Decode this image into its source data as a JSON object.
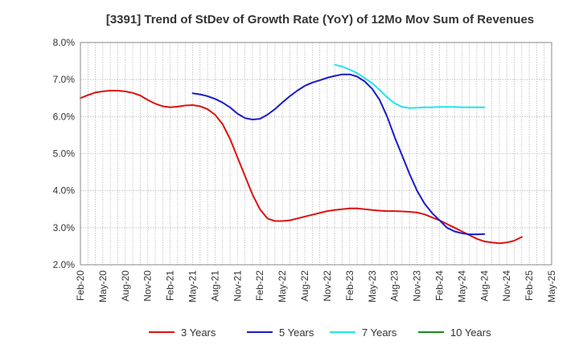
{
  "chart_data": {
    "type": "line",
    "title": "[3391]  Trend of StDev of Growth Rate (YoY) of 12Mo Mov Sum of Revenues",
    "xlabel": "",
    "ylabel": "",
    "ylim": [
      2.0,
      8.0
    ],
    "y_ticks": [
      "2.0%",
      "3.0%",
      "4.0%",
      "5.0%",
      "6.0%",
      "7.0%",
      "8.0%"
    ],
    "x_tick_labels": [
      "Feb-20",
      "May-20",
      "Aug-20",
      "Nov-20",
      "Feb-21",
      "May-21",
      "Aug-21",
      "Nov-21",
      "Feb-22",
      "May-22",
      "Aug-22",
      "Nov-22",
      "Feb-23",
      "May-23",
      "Aug-23",
      "Nov-23",
      "Feb-24",
      "May-24",
      "Aug-24",
      "Nov-24",
      "Feb-25",
      "May-25"
    ],
    "grid": true,
    "legend_position": "bottom",
    "series": [
      {
        "name": "3 Years",
        "color": "#dd1111",
        "points": [
          [
            0,
            6.5
          ],
          [
            1,
            6.58
          ],
          [
            2,
            6.65
          ],
          [
            3,
            6.68
          ],
          [
            4,
            6.7
          ],
          [
            5,
            6.7
          ],
          [
            6,
            6.68
          ],
          [
            7,
            6.64
          ],
          [
            8,
            6.57
          ],
          [
            9,
            6.45
          ],
          [
            10,
            6.35
          ],
          [
            11,
            6.28
          ],
          [
            12,
            6.25
          ],
          [
            13,
            6.27
          ],
          [
            14,
            6.3
          ],
          [
            15,
            6.31
          ],
          [
            16,
            6.28
          ],
          [
            17,
            6.2
          ],
          [
            18,
            6.05
          ],
          [
            19,
            5.8
          ],
          [
            20,
            5.4
          ],
          [
            21,
            4.9
          ],
          [
            22,
            4.4
          ],
          [
            23,
            3.9
          ],
          [
            24,
            3.5
          ],
          [
            25,
            3.25
          ],
          [
            26,
            3.18
          ],
          [
            27,
            3.18
          ],
          [
            28,
            3.2
          ],
          [
            29,
            3.25
          ],
          [
            30,
            3.3
          ],
          [
            31,
            3.35
          ],
          [
            32,
            3.4
          ],
          [
            33,
            3.45
          ],
          [
            34,
            3.48
          ],
          [
            35,
            3.5
          ],
          [
            36,
            3.52
          ],
          [
            37,
            3.52
          ],
          [
            38,
            3.5
          ],
          [
            39,
            3.48
          ],
          [
            40,
            3.46
          ],
          [
            41,
            3.45
          ],
          [
            42,
            3.45
          ],
          [
            43,
            3.44
          ],
          [
            44,
            3.43
          ],
          [
            45,
            3.41
          ],
          [
            46,
            3.36
          ],
          [
            47,
            3.28
          ],
          [
            48,
            3.2
          ],
          [
            49,
            3.1
          ],
          [
            50,
            3.0
          ],
          [
            51,
            2.9
          ],
          [
            52,
            2.8
          ],
          [
            53,
            2.7
          ],
          [
            54,
            2.63
          ],
          [
            55,
            2.6
          ],
          [
            56,
            2.58
          ],
          [
            57,
            2.6
          ],
          [
            58,
            2.65
          ],
          [
            59,
            2.75
          ]
        ]
      },
      {
        "name": "5 Years",
        "color": "#1a1acc",
        "points": [
          [
            15,
            6.63
          ],
          [
            16,
            6.6
          ],
          [
            17,
            6.55
          ],
          [
            18,
            6.48
          ],
          [
            19,
            6.38
          ],
          [
            20,
            6.25
          ],
          [
            21,
            6.08
          ],
          [
            22,
            5.96
          ],
          [
            23,
            5.92
          ],
          [
            24,
            5.94
          ],
          [
            25,
            6.05
          ],
          [
            26,
            6.2
          ],
          [
            27,
            6.38
          ],
          [
            28,
            6.55
          ],
          [
            29,
            6.7
          ],
          [
            30,
            6.83
          ],
          [
            31,
            6.92
          ],
          [
            32,
            6.98
          ],
          [
            33,
            7.05
          ],
          [
            34,
            7.1
          ],
          [
            35,
            7.14
          ],
          [
            36,
            7.14
          ],
          [
            37,
            7.08
          ],
          [
            38,
            6.95
          ],
          [
            39,
            6.75
          ],
          [
            40,
            6.45
          ],
          [
            41,
            6.0
          ],
          [
            42,
            5.45
          ],
          [
            43,
            4.95
          ],
          [
            44,
            4.45
          ],
          [
            45,
            4.0
          ],
          [
            46,
            3.65
          ],
          [
            47,
            3.4
          ],
          [
            48,
            3.2
          ],
          [
            49,
            3.0
          ],
          [
            50,
            2.9
          ],
          [
            51,
            2.85
          ],
          [
            52,
            2.82
          ],
          [
            53,
            2.82
          ],
          [
            54,
            2.83
          ]
        ]
      },
      {
        "name": "7 Years",
        "color": "#22e5ee",
        "points": [
          [
            34,
            7.4
          ],
          [
            35,
            7.35
          ],
          [
            36,
            7.27
          ],
          [
            37,
            7.17
          ],
          [
            38,
            7.04
          ],
          [
            39,
            6.9
          ],
          [
            40,
            6.72
          ],
          [
            41,
            6.52
          ],
          [
            42,
            6.36
          ],
          [
            43,
            6.26
          ],
          [
            44,
            6.23
          ],
          [
            45,
            6.24
          ],
          [
            46,
            6.25
          ],
          [
            47,
            6.25
          ],
          [
            48,
            6.26
          ],
          [
            49,
            6.26
          ],
          [
            50,
            6.26
          ],
          [
            51,
            6.25
          ],
          [
            52,
            6.25
          ],
          [
            53,
            6.25
          ],
          [
            54,
            6.25
          ]
        ]
      },
      {
        "name": "10 Years",
        "color": "#1a8a1a",
        "points": []
      }
    ]
  }
}
